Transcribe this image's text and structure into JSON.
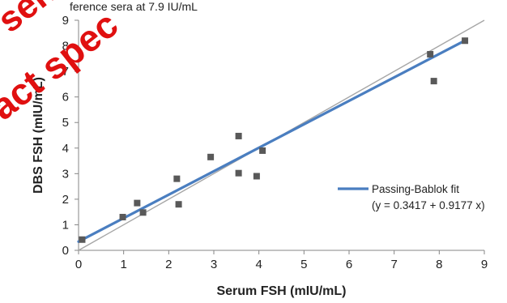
{
  "top_fragment": "ference sera at 7.9 IU/mL",
  "watermark": {
    "lines": [
      "sent",
      "act spec"
    ],
    "color": "#e01010"
  },
  "chart_data": {
    "type": "scatter",
    "xlabel": "Serum FSH (mIU/mL)",
    "ylabel": "DBS FSH (mIU/mL)",
    "xlim": [
      0,
      9
    ],
    "ylim": [
      0,
      9
    ],
    "xticks": [
      0,
      1,
      2,
      3,
      4,
      5,
      6,
      7,
      8,
      9
    ],
    "yticks": [
      0,
      1,
      2,
      3,
      4,
      5,
      6,
      7,
      8,
      9
    ],
    "grid": false,
    "legend_position": "right",
    "series": [
      {
        "type": "scatter",
        "marker": "square",
        "color": "#595959",
        "points": [
          [
            0.08,
            0.42
          ],
          [
            0.98,
            1.3
          ],
          [
            1.3,
            1.85
          ],
          [
            1.43,
            1.48
          ],
          [
            2.18,
            2.8
          ],
          [
            2.22,
            1.8
          ],
          [
            2.93,
            3.65
          ],
          [
            3.55,
            4.47
          ],
          [
            3.55,
            3.02
          ],
          [
            3.95,
            2.9
          ],
          [
            4.08,
            3.9
          ],
          [
            7.8,
            7.67
          ],
          [
            7.88,
            6.62
          ],
          [
            8.57,
            8.2
          ]
        ]
      },
      {
        "type": "line",
        "name": "Passing-Bablok fit",
        "equation": "(y = 0.3417 + 0.9177 x)",
        "intercept": 0.3417,
        "slope": 0.9177,
        "x_range": [
          0.0,
          8.57
        ],
        "color": "#4a7ec0"
      },
      {
        "type": "line",
        "role": "identity",
        "intercept": 0,
        "slope": 1,
        "x_range": [
          0,
          9
        ],
        "color": "#a6a6a6"
      }
    ]
  }
}
